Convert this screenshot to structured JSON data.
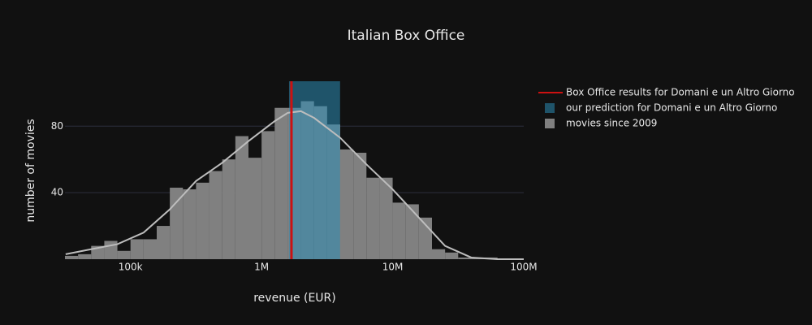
{
  "chart_data": {
    "type": "histogram",
    "title": "Italian Box Office",
    "x_label": "revenue (EUR)",
    "y_label": "number of movies",
    "log_x": true,
    "xlim": [
      31623,
      100000000
    ],
    "xticks": [
      {
        "value": 100000,
        "label": "100k"
      },
      {
        "value": 1000000,
        "label": "1M"
      },
      {
        "value": 10000000,
        "label": "10M"
      },
      {
        "value": 100000000,
        "label": "100M"
      }
    ],
    "ylim": [
      0,
      107
    ],
    "yticks": [
      40,
      80
    ],
    "grid": true,
    "legend": "right",
    "name": "movies since 2009",
    "color": "#808080",
    "bins": [
      31623,
      39811,
      50119,
      63096,
      79433,
      100000,
      125893,
      158489,
      199526,
      251189,
      316228,
      398107,
      501187,
      630957,
      794328,
      1000000,
      1258925,
      1584893,
      1995262,
      2511886,
      3162278,
      3981072,
      5011872,
      6309573,
      7943282,
      10000000,
      12589254,
      15848932,
      19952623,
      25118864,
      31622777,
      39810717,
      50118723,
      63095734,
      79432823,
      100000000
    ],
    "counts": [
      2,
      3,
      8,
      11,
      5,
      12,
      12,
      20,
      43,
      42,
      46,
      53,
      60,
      74,
      61,
      77,
      91,
      91,
      95,
      92,
      81,
      66,
      64,
      49,
      49,
      34,
      33,
      25,
      6,
      4,
      1,
      1,
      1,
      0,
      0
    ],
    "kde": {
      "color": "#bdbdbd",
      "x": [
        32000,
        50000,
        79433,
        125893,
        199526,
        316228,
        501187,
        794328,
        1258925,
        1584893,
        1995262,
        2511886,
        3981072,
        6309573,
        10000000,
        15848932,
        25118864,
        39810717,
        63095734,
        100000000
      ],
      "values": [
        3,
        6,
        9,
        16,
        30,
        47,
        58,
        71,
        83,
        88,
        89,
        85,
        73,
        57,
        42,
        25,
        8,
        1,
        0,
        0
      ]
    },
    "prediction": {
      "name": "our prediction for Domani e un Altro Giorno",
      "color": "#2b8cb5",
      "range": [
        1620000,
        3970000
      ]
    },
    "actual": {
      "name": "Box Office results for Domani e un Altro Giorno",
      "color": "#cc1111",
      "value": 1690000
    }
  }
}
